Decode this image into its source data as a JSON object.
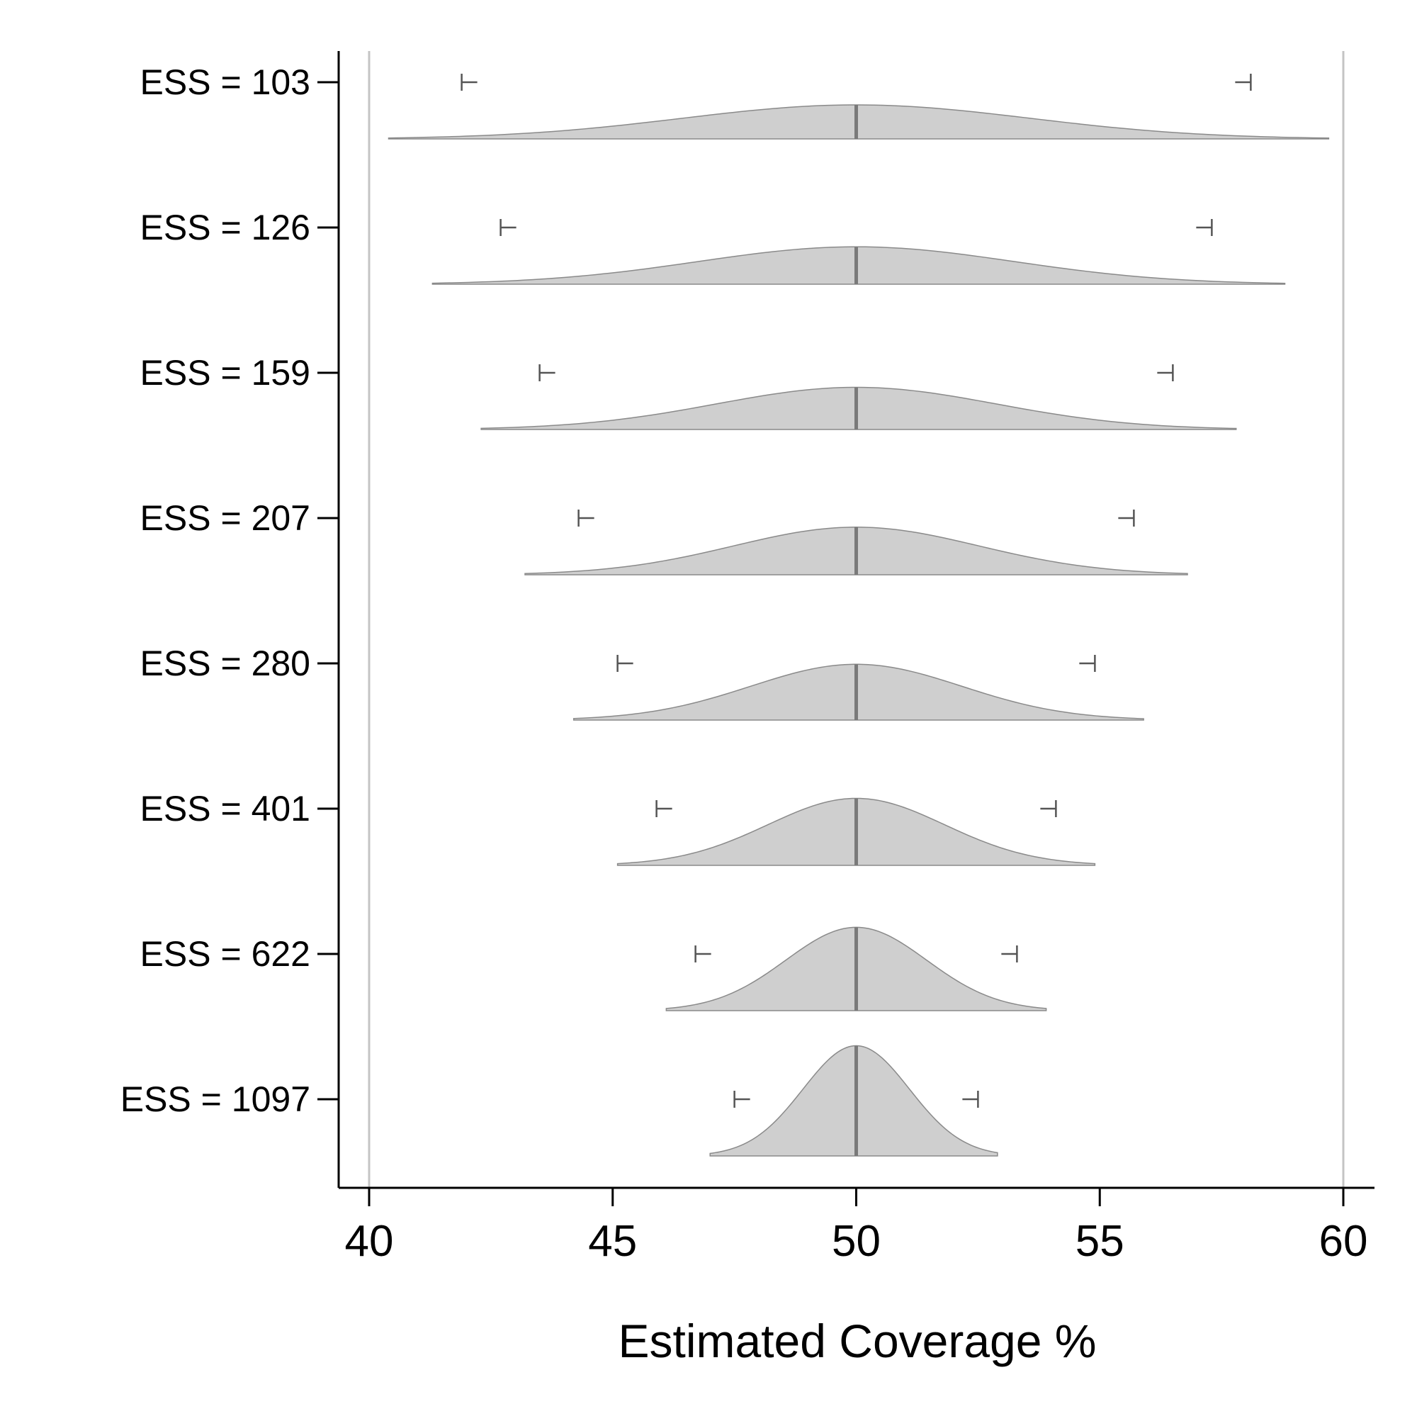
{
  "chart_data": {
    "type": "density",
    "title": "",
    "xlabel": "Estimated Coverage %",
    "ylabel": "",
    "xlim": [
      40,
      60
    ],
    "xticks": [
      40,
      45,
      50,
      55,
      60
    ],
    "xtick_labels": [
      "40",
      "45",
      "50",
      "55",
      "60"
    ],
    "reference_lines": [
      40,
      60
    ],
    "grid": false,
    "legend": "none",
    "colors": {
      "fill": "#cfcfcf",
      "outline": "#8a8a8a",
      "median": "#7a7a7a",
      "interval": "#555555",
      "reference": "#c4c4c4",
      "axis": "#000000"
    },
    "rows": [
      {
        "label": "ESS = 103",
        "ess": 103,
        "center": 50,
        "min": 40.4,
        "max": 59.7,
        "lower": 41.9,
        "upper": 58.1,
        "peak": 1.0
      },
      {
        "label": "ESS = 126",
        "ess": 126,
        "center": 50,
        "min": 41.3,
        "max": 58.8,
        "lower": 42.7,
        "upper": 57.3,
        "peak": 1.1
      },
      {
        "label": "ESS = 159",
        "ess": 159,
        "center": 50,
        "min": 42.3,
        "max": 57.8,
        "lower": 43.5,
        "upper": 56.5,
        "peak": 1.24
      },
      {
        "label": "ESS = 207",
        "ess": 207,
        "center": 50,
        "min": 43.2,
        "max": 56.8,
        "lower": 44.3,
        "upper": 55.7,
        "peak": 1.4
      },
      {
        "label": "ESS = 280",
        "ess": 280,
        "center": 50,
        "min": 44.2,
        "max": 55.9,
        "lower": 45.1,
        "upper": 54.9,
        "peak": 1.64
      },
      {
        "label": "ESS = 401",
        "ess": 401,
        "center": 50,
        "min": 45.1,
        "max": 54.9,
        "lower": 45.9,
        "upper": 54.1,
        "peak": 1.97
      },
      {
        "label": "ESS = 622",
        "ess": 622,
        "center": 50,
        "min": 46.1,
        "max": 53.9,
        "lower": 46.7,
        "upper": 53.3,
        "peak": 2.45
      },
      {
        "label": "ESS = 1097",
        "ess": 1097,
        "center": 50,
        "min": 47.0,
        "max": 52.9,
        "lower": 47.5,
        "upper": 52.5,
        "peak": 3.24
      }
    ]
  }
}
